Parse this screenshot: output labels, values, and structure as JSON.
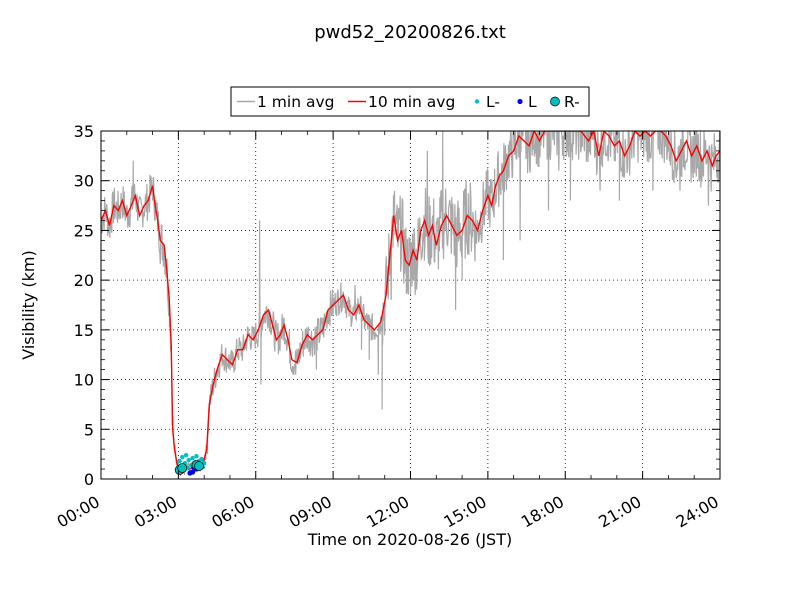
{
  "chart_data": {
    "type": "line",
    "title": "pwd52_20200826.txt",
    "xlabel": "Time on 2020-08-26 (JST)",
    "ylabel": "Visibility (km)",
    "xlim": [
      0,
      24
    ],
    "ylim": [
      0,
      35
    ],
    "x_unit": "hours",
    "xticks": [
      0,
      3,
      6,
      9,
      12,
      15,
      18,
      21,
      24
    ],
    "xtick_labels": [
      "00:00",
      "03:00",
      "06:00",
      "09:00",
      "12:00",
      "15:00",
      "18:00",
      "21:00",
      "24:00"
    ],
    "yticks": [
      0,
      5,
      10,
      15,
      20,
      25,
      30,
      35
    ],
    "ytick_labels": [
      "0",
      "5",
      "10",
      "15",
      "20",
      "25",
      "30",
      "35"
    ],
    "grid": true,
    "legend_position": "top-center",
    "legend": [
      {
        "label": "1 min avg",
        "kind": "line",
        "color": "#a8a8a8"
      },
      {
        "label": "10 min avg",
        "kind": "line",
        "color": "#ff0000"
      },
      {
        "label": "L-",
        "kind": "dot",
        "color": "#00bfbf"
      },
      {
        "label": "L",
        "kind": "dot",
        "color": "#0000ff"
      },
      {
        "label": "R-",
        "kind": "marker",
        "color": "#00bfbf"
      }
    ],
    "series": [
      {
        "name": "10 min avg",
        "color": "#ff0000",
        "points": [
          [
            0.0,
            26.0
          ],
          [
            0.17,
            27.0
          ],
          [
            0.33,
            25.5
          ],
          [
            0.5,
            27.5
          ],
          [
            0.67,
            27.0
          ],
          [
            0.83,
            28.0
          ],
          [
            1.0,
            26.5
          ],
          [
            1.17,
            27.5
          ],
          [
            1.33,
            28.5
          ],
          [
            1.5,
            26.5
          ],
          [
            1.67,
            27.5
          ],
          [
            1.83,
            28.0
          ],
          [
            2.0,
            29.5
          ],
          [
            2.1,
            27.5
          ],
          [
            2.2,
            26.0
          ],
          [
            2.3,
            24.0
          ],
          [
            2.45,
            23.5
          ],
          [
            2.55,
            21.0
          ],
          [
            2.65,
            18.0
          ],
          [
            2.72,
            13.5
          ],
          [
            2.78,
            5.0
          ],
          [
            2.85,
            3.0
          ],
          [
            2.95,
            1.5
          ],
          [
            3.1,
            0.9
          ],
          [
            3.4,
            1.0
          ],
          [
            3.7,
            1.2
          ],
          [
            3.95,
            1.5
          ],
          [
            4.1,
            3.0
          ],
          [
            4.2,
            7.5
          ],
          [
            4.35,
            9.5
          ],
          [
            4.5,
            11.0
          ],
          [
            4.7,
            12.5
          ],
          [
            4.9,
            12.0
          ],
          [
            5.1,
            11.5
          ],
          [
            5.3,
            13.0
          ],
          [
            5.5,
            13.0
          ],
          [
            5.7,
            14.5
          ],
          [
            5.9,
            14.0
          ],
          [
            6.1,
            15.0
          ],
          [
            6.3,
            16.5
          ],
          [
            6.5,
            17.0
          ],
          [
            6.65,
            15.5
          ],
          [
            6.8,
            14.0
          ],
          [
            6.95,
            14.5
          ],
          [
            7.1,
            15.5
          ],
          [
            7.25,
            14.0
          ],
          [
            7.4,
            12.0
          ],
          [
            7.6,
            11.7
          ],
          [
            7.8,
            13.5
          ],
          [
            8.0,
            14.5
          ],
          [
            8.2,
            14.0
          ],
          [
            8.4,
            14.5
          ],
          [
            8.6,
            15.0
          ],
          [
            8.8,
            17.0
          ],
          [
            9.0,
            17.5
          ],
          [
            9.2,
            18.0
          ],
          [
            9.4,
            18.5
          ],
          [
            9.6,
            17.0
          ],
          [
            9.8,
            16.5
          ],
          [
            10.0,
            17.5
          ],
          [
            10.2,
            16.0
          ],
          [
            10.4,
            15.5
          ],
          [
            10.6,
            15.0
          ],
          [
            10.85,
            15.8
          ],
          [
            11.05,
            18.5
          ],
          [
            11.2,
            22.5
          ],
          [
            11.35,
            26.5
          ],
          [
            11.5,
            24.0
          ],
          [
            11.65,
            25.0
          ],
          [
            11.8,
            22.0
          ],
          [
            11.95,
            21.5
          ],
          [
            12.1,
            23.0
          ],
          [
            12.25,
            22.0
          ],
          [
            12.4,
            25.0
          ],
          [
            12.55,
            26.0
          ],
          [
            12.7,
            24.5
          ],
          [
            12.85,
            25.5
          ],
          [
            13.0,
            23.5
          ],
          [
            13.2,
            25.5
          ],
          [
            13.4,
            26.5
          ],
          [
            13.6,
            25.5
          ],
          [
            13.8,
            24.5
          ],
          [
            14.0,
            25.0
          ],
          [
            14.2,
            26.5
          ],
          [
            14.4,
            26.0
          ],
          [
            14.6,
            25.0
          ],
          [
            14.8,
            27.0
          ],
          [
            15.0,
            28.5
          ],
          [
            15.15,
            27.5
          ],
          [
            15.3,
            29.5
          ],
          [
            15.45,
            30.5
          ],
          [
            15.6,
            31.0
          ],
          [
            15.8,
            32.5
          ],
          [
            16.0,
            33.0
          ],
          [
            16.2,
            34.5
          ],
          [
            16.4,
            34.0
          ],
          [
            16.6,
            33.5
          ],
          [
            16.8,
            35.0
          ],
          [
            17.0,
            34.0
          ],
          [
            17.2,
            35.0
          ],
          [
            17.4,
            35.0
          ],
          [
            17.7,
            35.0
          ],
          [
            18.0,
            35.0
          ],
          [
            18.3,
            35.0
          ],
          [
            18.6,
            35.0
          ],
          [
            18.9,
            34.0
          ],
          [
            19.1,
            35.0
          ],
          [
            19.3,
            32.5
          ],
          [
            19.5,
            35.0
          ],
          [
            19.7,
            34.5
          ],
          [
            19.9,
            33.5
          ],
          [
            20.1,
            34.0
          ],
          [
            20.3,
            32.5
          ],
          [
            20.5,
            33.5
          ],
          [
            20.7,
            35.0
          ],
          [
            20.9,
            34.5
          ],
          [
            21.1,
            35.0
          ],
          [
            21.3,
            34.5
          ],
          [
            21.5,
            35.0
          ],
          [
            21.7,
            35.0
          ],
          [
            21.9,
            34.5
          ],
          [
            22.1,
            33.5
          ],
          [
            22.3,
            32.0
          ],
          [
            22.5,
            33.0
          ],
          [
            22.7,
            34.0
          ],
          [
            22.9,
            32.5
          ],
          [
            23.1,
            33.5
          ],
          [
            23.3,
            32.0
          ],
          [
            23.5,
            33.0
          ],
          [
            23.7,
            31.5
          ],
          [
            23.85,
            32.5
          ],
          [
            24.0,
            33.0
          ]
        ]
      }
    ],
    "minute_series": {
      "name": "1 min avg",
      "color": "#a8a8a8",
      "noise_segments": [
        [
          0.0,
          2.3,
          2.0
        ],
        [
          2.3,
          2.8,
          2.5
        ],
        [
          2.8,
          4.1,
          0.7
        ],
        [
          4.1,
          6.0,
          1.5
        ],
        [
          6.0,
          9.0,
          1.8
        ],
        [
          9.0,
          10.9,
          1.5
        ],
        [
          10.9,
          14.5,
          4.0
        ],
        [
          14.5,
          24.0,
          3.0
        ]
      ],
      "spikes": [
        [
          1.25,
          32.0
        ],
        [
          6.15,
          26.0
        ],
        [
          6.2,
          9.5
        ],
        [
          7.55,
          10.5
        ],
        [
          8.35,
          11.0
        ],
        [
          9.85,
          19.5
        ],
        [
          10.1,
          13.0
        ],
        [
          10.4,
          12.0
        ],
        [
          10.75,
          10.5
        ],
        [
          10.9,
          7.0
        ],
        [
          11.25,
          18.0
        ],
        [
          12.0,
          18.5
        ],
        [
          12.65,
          33.0
        ],
        [
          13.25,
          35.0
        ],
        [
          13.75,
          17.0
        ],
        [
          14.0,
          20.0
        ],
        [
          15.6,
          22.0
        ],
        [
          16.25,
          24.0
        ],
        [
          17.35,
          27.0
        ],
        [
          17.75,
          31.0
        ],
        [
          18.2,
          28.0
        ],
        [
          19.35,
          29.0
        ],
        [
          20.1,
          28.0
        ],
        [
          21.4,
          29.0
        ],
        [
          22.45,
          29.0
        ],
        [
          23.55,
          27.5
        ]
      ]
    },
    "marker_groups": [
      {
        "name": "L-",
        "style": "dot",
        "color": "#00bfbf",
        "points": [
          [
            2.95,
            1.0
          ],
          [
            3.0,
            0.8
          ],
          [
            3.05,
            1.8
          ],
          [
            3.1,
            1.2
          ],
          [
            3.15,
            2.2
          ],
          [
            3.2,
            0.9
          ],
          [
            3.25,
            1.6
          ],
          [
            3.3,
            2.4
          ],
          [
            3.35,
            1.1
          ],
          [
            3.4,
            1.9
          ],
          [
            3.45,
            0.7
          ],
          [
            3.5,
            1.4
          ],
          [
            3.55,
            2.1
          ],
          [
            3.6,
            1.0
          ],
          [
            3.65,
            1.7
          ],
          [
            3.7,
            2.3
          ],
          [
            3.75,
            1.3
          ],
          [
            3.8,
            1.8
          ],
          [
            3.85,
            1.5
          ],
          [
            3.9,
            2.0
          ],
          [
            3.95,
            1.2
          ],
          [
            4.0,
            1.6
          ]
        ]
      },
      {
        "name": "L",
        "style": "dot",
        "color": "#0000ff",
        "points": [
          [
            3.0,
            0.9
          ],
          [
            3.45,
            0.6
          ],
          [
            3.55,
            0.7
          ],
          [
            3.6,
            1.2
          ],
          [
            3.7,
            1.0
          ]
        ]
      },
      {
        "name": "R-",
        "style": "marker",
        "color": "#00bfbf",
        "points": [
          [
            3.05,
            0.9
          ],
          [
            3.15,
            1.1
          ],
          [
            3.7,
            1.4
          ],
          [
            3.8,
            1.3
          ]
        ]
      }
    ]
  }
}
